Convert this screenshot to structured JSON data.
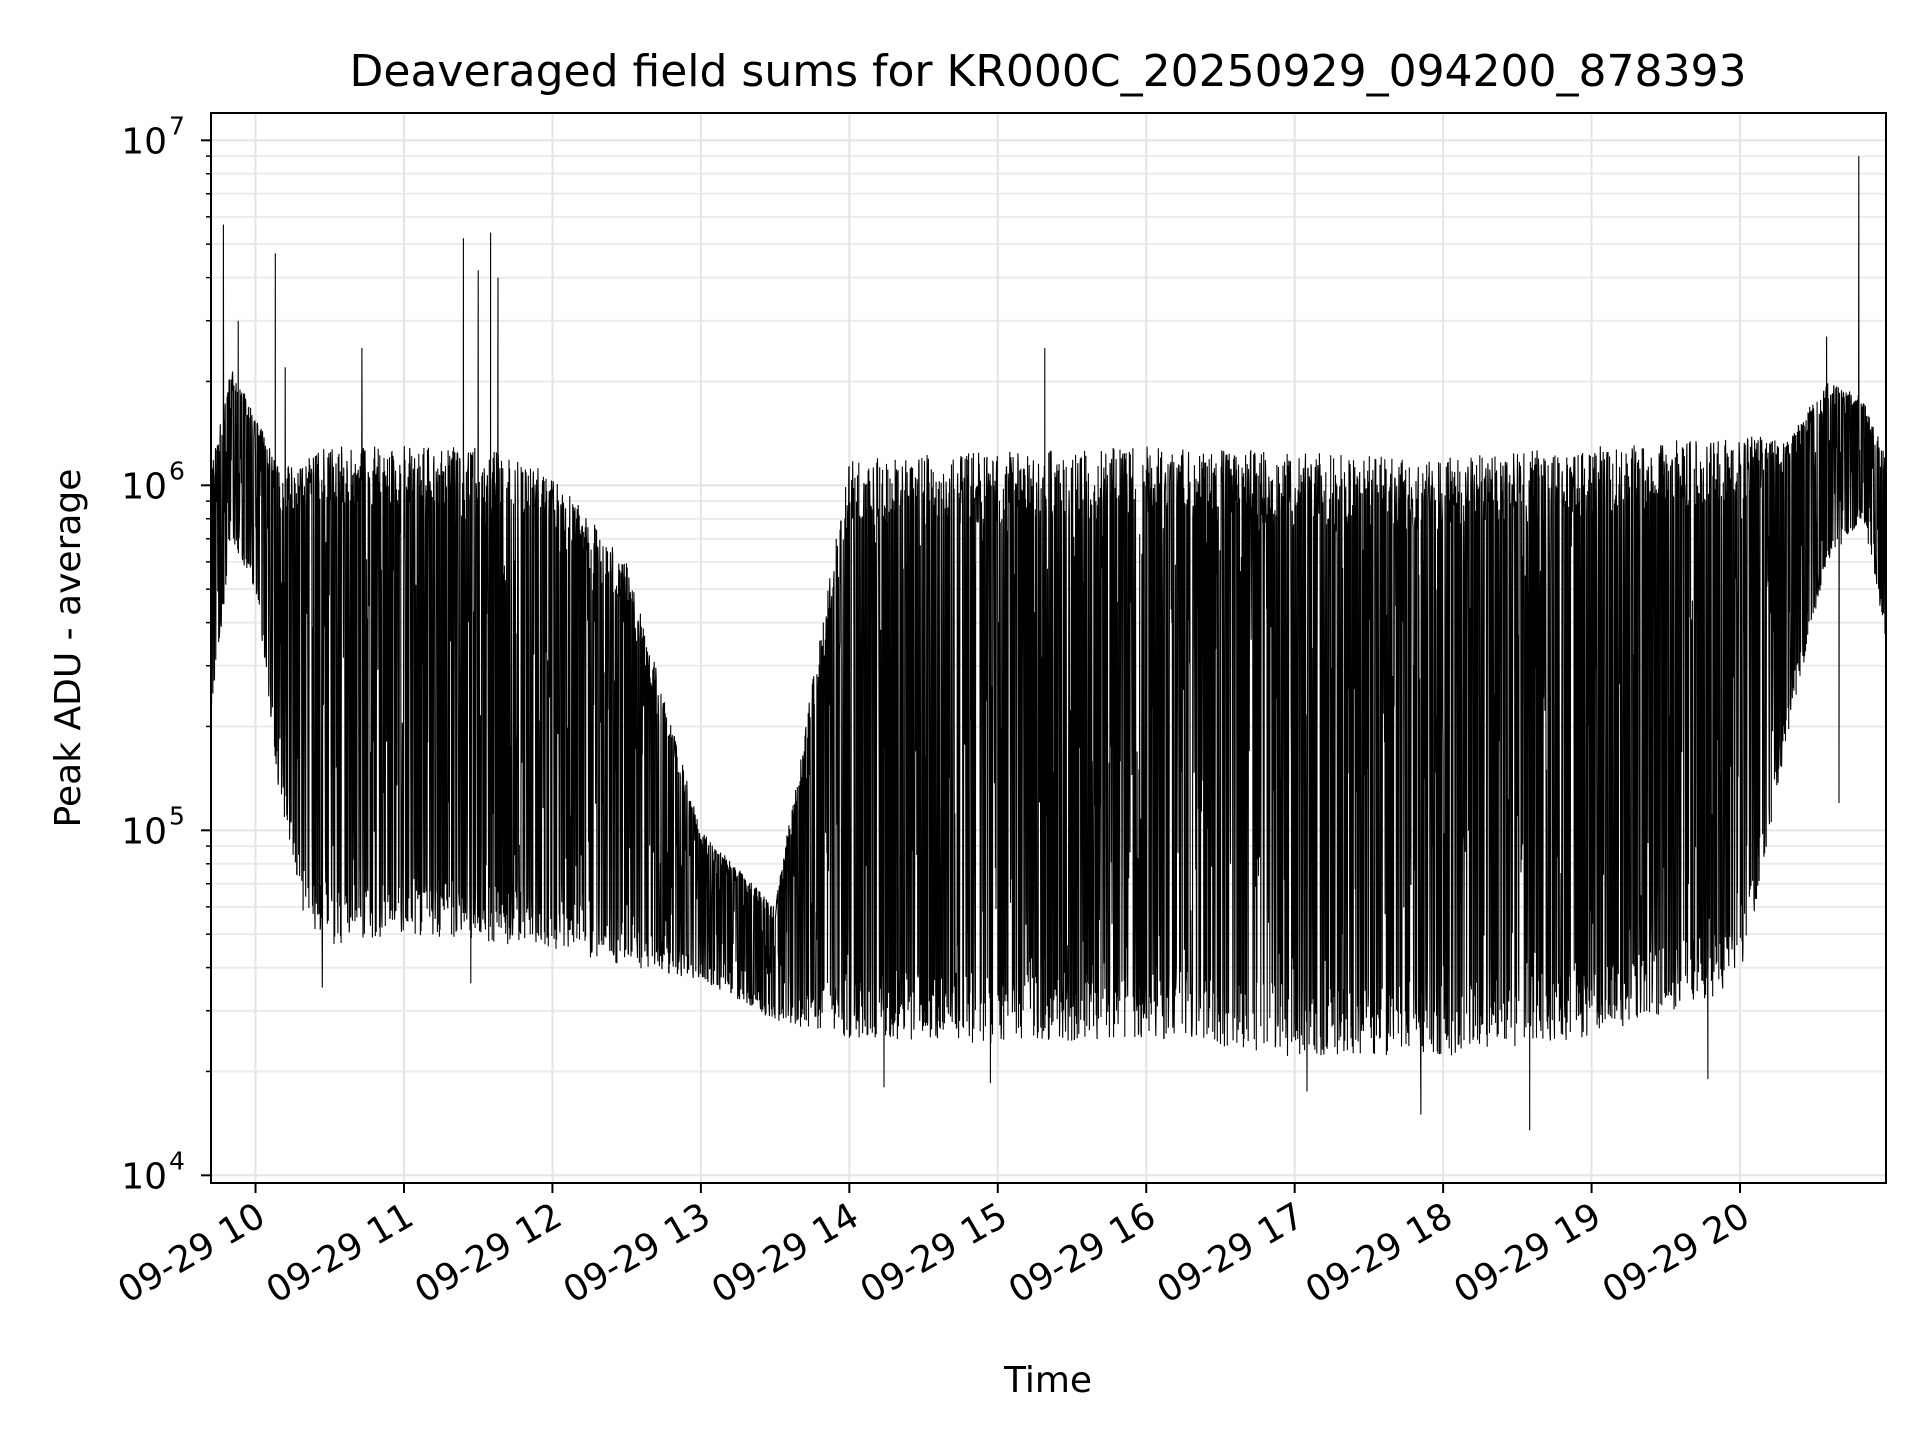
{
  "chart_data": {
    "type": "line",
    "title": "Deaveraged field sums for KR000C_20250929_094200_878393",
    "xlabel": "Time",
    "ylabel": "Peak ADU - average",
    "yscale": "log",
    "ylim": [
      9500,
      12000000
    ],
    "xlim": [
      "2025-09-29 09:42",
      "2025-09-29 20:59"
    ],
    "grid": "major and minor",
    "line_color": "#000000",
    "x_ticks": [
      {
        "x": "2025-09-29 10:00",
        "label": "09-29 10"
      },
      {
        "x": "2025-09-29 11:00",
        "label": "09-29 11"
      },
      {
        "x": "2025-09-29 12:00",
        "label": "09-29 12"
      },
      {
        "x": "2025-09-29 13:00",
        "label": "09-29 13"
      },
      {
        "x": "2025-09-29 14:00",
        "label": "09-29 14"
      },
      {
        "x": "2025-09-29 15:00",
        "label": "09-29 15"
      },
      {
        "x": "2025-09-29 16:00",
        "label": "09-29 16"
      },
      {
        "x": "2025-09-29 17:00",
        "label": "09-29 17"
      },
      {
        "x": "2025-09-29 18:00",
        "label": "09-29 18"
      },
      {
        "x": "2025-09-29 19:00",
        "label": "09-29 19"
      },
      {
        "x": "2025-09-29 20:00",
        "label": "09-29 20"
      }
    ],
    "y_ticks": [
      {
        "value": 10000,
        "base": "10",
        "exp": "4"
      },
      {
        "value": 100000,
        "base": "10",
        "exp": "5"
      },
      {
        "value": 1000000,
        "base": "10",
        "exp": "6"
      },
      {
        "value": 10000000,
        "base": "10",
        "exp": "7"
      }
    ],
    "series": [
      {
        "envelope": [
          {
            "x": "2025-09-29 09:42",
            "low": 200000,
            "high": 1100000
          },
          {
            "x": "2025-09-29 09:50",
            "low": 700000,
            "high": 2200000
          },
          {
            "x": "2025-09-29 10:00",
            "low": 500000,
            "high": 1600000
          },
          {
            "x": "2025-09-29 10:10",
            "low": 120000,
            "high": 1100000
          },
          {
            "x": "2025-09-29 10:20",
            "low": 55000,
            "high": 1200000
          },
          {
            "x": "2025-09-29 10:30",
            "low": 45000,
            "high": 1300000
          },
          {
            "x": "2025-09-29 11:00",
            "low": 50000,
            "high": 1300000
          },
          {
            "x": "2025-09-29 11:30",
            "low": 48000,
            "high": 1300000
          },
          {
            "x": "2025-09-29 12:00",
            "low": 45000,
            "high": 1100000
          },
          {
            "x": "2025-09-29 12:30",
            "low": 40000,
            "high": 600000
          },
          {
            "x": "2025-09-29 13:00",
            "low": 37000,
            "high": 100000
          },
          {
            "x": "2025-09-29 13:30",
            "low": 28000,
            "high": 60000
          },
          {
            "x": "2025-09-29 14:00",
            "low": 25000,
            "high": 1200000
          },
          {
            "x": "2025-09-29 15:00",
            "low": 24000,
            "high": 1250000
          },
          {
            "x": "2025-09-29 16:00",
            "low": 25000,
            "high": 1300000
          },
          {
            "x": "2025-09-29 17:00",
            "low": 22000,
            "high": 1250000
          },
          {
            "x": "2025-09-29 18:00",
            "low": 22000,
            "high": 1200000
          },
          {
            "x": "2025-09-29 19:00",
            "low": 25000,
            "high": 1300000
          },
          {
            "x": "2025-09-29 20:00",
            "low": 35000,
            "high": 1400000
          },
          {
            "x": "2025-09-29 20:20",
            "low": 200000,
            "high": 1400000
          },
          {
            "x": "2025-09-29 20:35",
            "low": 600000,
            "high": 2000000
          },
          {
            "x": "2025-09-29 20:50",
            "low": 800000,
            "high": 1800000
          },
          {
            "x": "2025-09-29 20:59",
            "low": 350000,
            "high": 1200000
          }
        ],
        "spikes": [
          {
            "x": "2025-09-29 09:47",
            "value": 5700000
          },
          {
            "x": "2025-09-29 09:53",
            "value": 3000000
          },
          {
            "x": "2025-09-29 10:08",
            "value": 4700000
          },
          {
            "x": "2025-09-29 10:12",
            "value": 2200000
          },
          {
            "x": "2025-09-29 10:43",
            "value": 2500000
          },
          {
            "x": "2025-09-29 11:24",
            "value": 5200000
          },
          {
            "x": "2025-09-29 11:30",
            "value": 4200000
          },
          {
            "x": "2025-09-29 11:35",
            "value": 5400000
          },
          {
            "x": "2025-09-29 11:38",
            "value": 4000000
          },
          {
            "x": "2025-09-29 15:19",
            "value": 2500000
          },
          {
            "x": "2025-09-29 20:35",
            "value": 2700000
          },
          {
            "x": "2025-09-29 20:48",
            "value": 9000000
          }
        ],
        "dips": [
          {
            "x": "2025-09-29 10:27",
            "value": 35000
          },
          {
            "x": "2025-09-29 11:27",
            "value": 36000
          },
          {
            "x": "2025-09-29 14:14",
            "value": 18000
          },
          {
            "x": "2025-09-29 14:57",
            "value": 18500
          },
          {
            "x": "2025-09-29 17:05",
            "value": 17500
          },
          {
            "x": "2025-09-29 17:51",
            "value": 15000
          },
          {
            "x": "2025-09-29 18:35",
            "value": 13500
          },
          {
            "x": "2025-09-29 19:47",
            "value": 19000
          },
          {
            "x": "2025-09-29 20:40",
            "value": 120000
          }
        ]
      }
    ]
  }
}
